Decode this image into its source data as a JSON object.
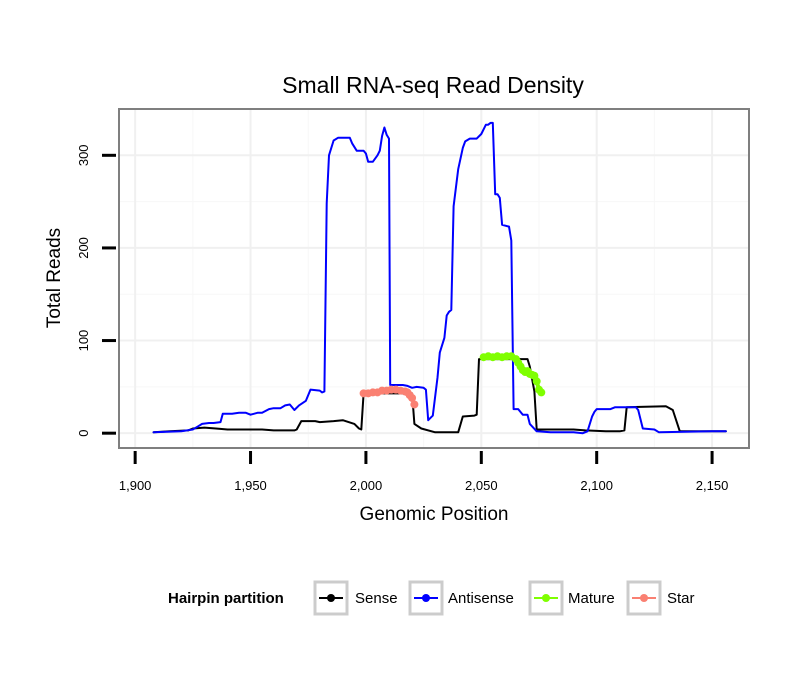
{
  "chart_data": {
    "type": "line",
    "title": "Small RNA-seq Read Density",
    "xlabel": "Genomic Position",
    "ylabel": "Total Reads",
    "xlim": [
      1893,
      2166
    ],
    "ylim": [
      -16,
      350
    ],
    "xticks": [
      1900,
      1950,
      2000,
      2050,
      2100,
      2150
    ],
    "xtick_labels": [
      "1,900",
      "1,950",
      "2,000",
      "2,050",
      "2,100",
      "2,150"
    ],
    "yticks": [
      0,
      100,
      200,
      300
    ],
    "ytick_labels": [
      "0",
      "100",
      "200",
      "300"
    ],
    "grid": true,
    "legend": {
      "title": "Hairpin partition",
      "position": "bottom",
      "entries": [
        "Sense",
        "Antisense",
        "Mature",
        "Star"
      ]
    },
    "series": [
      {
        "name": "Sense",
        "color": "#000000",
        "points": [
          [
            1908,
            1
          ],
          [
            1915,
            2
          ],
          [
            1923,
            3
          ],
          [
            1925,
            5
          ],
          [
            1930,
            6
          ],
          [
            1935,
            5
          ],
          [
            1940,
            4
          ],
          [
            1955,
            4
          ],
          [
            1960,
            3
          ],
          [
            1969,
            3
          ],
          [
            1970,
            4
          ],
          [
            1972,
            13
          ],
          [
            1978,
            13
          ],
          [
            1980,
            12
          ],
          [
            1986,
            13
          ],
          [
            1990,
            14
          ],
          [
            1995,
            10
          ],
          [
            1997,
            5
          ],
          [
            1998,
            4
          ],
          [
            1999,
            43
          ],
          [
            2020,
            43
          ],
          [
            2021,
            10
          ],
          [
            2024,
            5
          ],
          [
            2030,
            1
          ],
          [
            2040,
            1
          ],
          [
            2042,
            18
          ],
          [
            2047,
            19
          ],
          [
            2048,
            20
          ],
          [
            2049,
            80
          ],
          [
            2070,
            80
          ],
          [
            2071,
            72
          ],
          [
            2073,
            45
          ],
          [
            2074,
            4
          ],
          [
            2090,
            4
          ],
          [
            2095,
            3
          ],
          [
            2104,
            2
          ],
          [
            2110,
            2
          ],
          [
            2112,
            3
          ],
          [
            2113,
            28
          ],
          [
            2130,
            29
          ],
          [
            2133,
            25
          ],
          [
            2136,
            2
          ],
          [
            2156,
            2
          ]
        ]
      },
      {
        "name": "Antisense",
        "color": "#0000ff",
        "points": [
          [
            1908,
            1
          ],
          [
            1920,
            2
          ],
          [
            1925,
            4
          ],
          [
            1927,
            7
          ],
          [
            1929,
            10
          ],
          [
            1932,
            11
          ],
          [
            1934,
            11
          ],
          [
            1937,
            12
          ],
          [
            1938,
            21
          ],
          [
            1942,
            21
          ],
          [
            1945,
            22
          ],
          [
            1948,
            22
          ],
          [
            1950,
            20
          ],
          [
            1953,
            22
          ],
          [
            1955,
            22
          ],
          [
            1958,
            26
          ],
          [
            1960,
            27
          ],
          [
            1963,
            27
          ],
          [
            1965,
            30
          ],
          [
            1967,
            31
          ],
          [
            1969,
            25
          ],
          [
            1971,
            30
          ],
          [
            1974,
            35
          ],
          [
            1976,
            47
          ],
          [
            1980,
            46
          ],
          [
            1981,
            44
          ],
          [
            1982,
            45
          ],
          [
            1983,
            248
          ],
          [
            1984,
            300
          ],
          [
            1986,
            316
          ],
          [
            1988,
            319
          ],
          [
            1993,
            319
          ],
          [
            1994,
            313
          ],
          [
            1996,
            305
          ],
          [
            1999,
            305
          ],
          [
            2000,
            302
          ],
          [
            2001,
            293
          ],
          [
            2003,
            293
          ],
          [
            2005,
            300
          ],
          [
            2006,
            305
          ],
          [
            2007,
            321
          ],
          [
            2008,
            330
          ],
          [
            2009,
            322
          ],
          [
            2010,
            318
          ],
          [
            2010.5,
            52
          ],
          [
            2013,
            52
          ],
          [
            2016,
            52
          ],
          [
            2018,
            51
          ],
          [
            2020,
            49
          ],
          [
            2022,
            50
          ],
          [
            2025,
            49
          ],
          [
            2026,
            47
          ],
          [
            2027,
            14
          ],
          [
            2029,
            19
          ],
          [
            2031,
            60
          ],
          [
            2032,
            87
          ],
          [
            2034,
            103
          ],
          [
            2035,
            127
          ],
          [
            2036,
            131
          ],
          [
            2037,
            133
          ],
          [
            2038,
            245
          ],
          [
            2040,
            285
          ],
          [
            2042,
            308
          ],
          [
            2043,
            315
          ],
          [
            2045,
            318
          ],
          [
            2048,
            318
          ],
          [
            2050,
            323
          ],
          [
            2052,
            333
          ],
          [
            2053,
            333
          ],
          [
            2054,
            335
          ],
          [
            2055,
            335
          ],
          [
            2056,
            258
          ],
          [
            2057,
            258
          ],
          [
            2058,
            254
          ],
          [
            2059,
            225
          ],
          [
            2062,
            223
          ],
          [
            2063,
            208
          ],
          [
            2064,
            26
          ],
          [
            2066,
            26
          ],
          [
            2068,
            20
          ],
          [
            2070,
            20
          ],
          [
            2071,
            10
          ],
          [
            2074,
            2
          ],
          [
            2080,
            1
          ],
          [
            2090,
            1
          ],
          [
            2094,
            0
          ],
          [
            2096,
            2
          ],
          [
            2098,
            18
          ],
          [
            2099,
            23
          ],
          [
            2100,
            26
          ],
          [
            2106,
            26
          ],
          [
            2108,
            28
          ],
          [
            2117,
            28
          ],
          [
            2118,
            25
          ],
          [
            2119,
            15
          ],
          [
            2120,
            5
          ],
          [
            2125,
            4
          ],
          [
            2127,
            1
          ],
          [
            2150,
            2
          ],
          [
            2156,
            2
          ]
        ]
      },
      {
        "name": "Mature",
        "color": "#7fff00",
        "points": [
          [
            2051,
            82
          ],
          [
            2053,
            83
          ],
          [
            2055,
            82
          ],
          [
            2057,
            83
          ],
          [
            2059,
            82
          ],
          [
            2061,
            83
          ],
          [
            2063,
            83
          ],
          [
            2065,
            80
          ],
          [
            2066,
            76
          ],
          [
            2067,
            72
          ],
          [
            2068,
            68
          ],
          [
            2069,
            66
          ],
          [
            2070,
            67
          ],
          [
            2071,
            64
          ],
          [
            2072,
            63
          ],
          [
            2073,
            62
          ],
          [
            2074,
            56
          ],
          [
            2075,
            47
          ],
          [
            2076,
            44
          ]
        ]
      },
      {
        "name": "Star",
        "color": "#fa8072",
        "points": [
          [
            1999,
            43
          ],
          [
            2001,
            43
          ],
          [
            2003,
            44
          ],
          [
            2005,
            44
          ],
          [
            2007,
            46
          ],
          [
            2009,
            46
          ],
          [
            2011,
            47
          ],
          [
            2013,
            47
          ],
          [
            2015,
            46
          ],
          [
            2017,
            45
          ],
          [
            2018,
            44
          ],
          [
            2019,
            41
          ],
          [
            2020,
            38
          ],
          [
            2021,
            31
          ]
        ]
      }
    ]
  }
}
